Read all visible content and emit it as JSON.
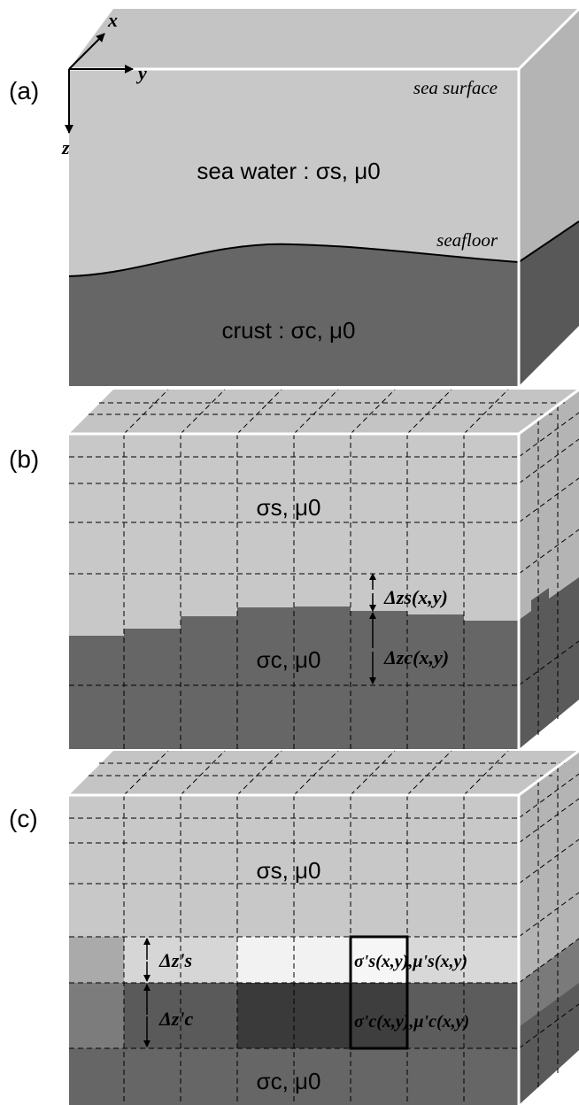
{
  "axes": {
    "x": "x",
    "y": "y",
    "z": "z"
  },
  "panel_a": {
    "label": "(a)",
    "sea_surface": "sea surface",
    "seafloor": "seafloor",
    "water_label": "sea water : σs, μ0",
    "crust_label": "crust : σc, μ0"
  },
  "panel_b": {
    "label": "(b)",
    "water_label": "σs, μ0",
    "crust_label": "σc, μ0",
    "dz_s": "Δzs(x,y)",
    "dz_c": "Δzc(x,y)"
  },
  "panel_c": {
    "label": "(c)",
    "water_label": "σs, μ0",
    "crust_label": "σc, μ0",
    "dz_s": "Δz's",
    "dz_c": "Δz'c",
    "sigma_s": "σ's(x,y),μ's(x,y)",
    "sigma_c": "σ'c(x,y),μ'c(x,y)"
  },
  "colors": {
    "water": "#c8c8c8",
    "crust": "#666666",
    "top_face": "#bcbcbc",
    "side_water": "#b0b0b0",
    "side_crust": "#5a5a5a"
  }
}
